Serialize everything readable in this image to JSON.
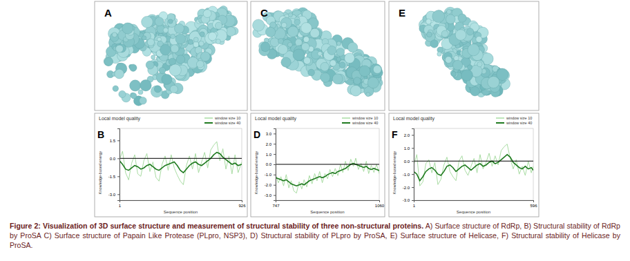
{
  "chart_data": [
    {
      "type": "line",
      "title": "Local model quality",
      "x_label": "Sequence position",
      "y_label": "Knowledge-based energy",
      "annotations": [
        "B"
      ],
      "legend": "upper right",
      "hline": 0,
      "x": [
        1,
        24,
        47,
        70,
        93,
        116,
        139,
        162,
        185,
        208,
        231,
        254,
        277,
        300,
        323,
        346,
        369,
        392,
        415,
        438,
        461,
        484,
        507,
        530,
        553,
        576,
        599,
        622,
        645,
        668,
        691,
        714,
        737,
        760,
        783,
        806,
        829,
        852,
        875,
        898,
        926
      ],
      "xlim": [
        1,
        926
      ],
      "xticks": [
        1,
        926
      ],
      "ylim": [
        -3.5,
        2.5
      ],
      "yticks": [
        {
          "value": -3,
          "label": "-3.0"
        },
        {
          "value": -1.5,
          "label": "-1.5"
        },
        {
          "value": 0,
          "label": "0.0"
        },
        {
          "value": 1.5,
          "label": "1.5"
        }
      ],
      "series": [
        {
          "name": "window size 10",
          "color": "#a9dca3",
          "values": [
            -0.1,
            0.6,
            -1.2,
            -1.8,
            -0.4,
            0.3,
            -1.3,
            -1.5,
            -0.2,
            0.4,
            -1.1,
            -0.3,
            -1.6,
            -1.9,
            -0.5,
            0.2,
            -1.0,
            0.3,
            -0.8,
            -1.4,
            -1.9,
            -2.2,
            -0.6,
            0.2,
            -0.9,
            0.4,
            -1.2,
            -0.3,
            0.5,
            -0.8,
            0.7,
            1.1,
            1.4,
            -0.2,
            0.8,
            -0.9,
            0.2,
            -1.3,
            0.3,
            -1.2,
            -0.3
          ]
        },
        {
          "name": "window size 40",
          "color": "#1f7a1f",
          "values": [
            -0.2,
            -0.5,
            -0.9,
            -1.0,
            -0.8,
            -0.6,
            -0.7,
            -0.9,
            -0.8,
            -0.6,
            -0.5,
            -0.7,
            -0.9,
            -1.0,
            -0.8,
            -0.6,
            -0.5,
            -0.4,
            -0.3,
            -0.6,
            -1.0,
            -1.2,
            -0.9,
            -0.6,
            -0.4,
            -0.3,
            -0.5,
            -0.6,
            -0.4,
            -0.2,
            0.0,
            0.3,
            0.5,
            0.4,
            0.1,
            -0.1,
            -0.3,
            -0.5,
            -0.4,
            -0.6,
            -0.5
          ]
        }
      ]
    },
    {
      "type": "line",
      "title": "Local model quality",
      "x_label": "Sequence position",
      "y_label": "Knowledge-based energy",
      "annotations": [
        "D"
      ],
      "legend": "upper right",
      "hline": 0,
      "x": [
        747,
        755,
        763,
        771,
        779,
        787,
        794,
        802,
        810,
        818,
        826,
        833,
        841,
        849,
        857,
        865,
        872,
        880,
        888,
        896,
        904,
        911,
        919,
        927,
        935,
        943,
        950,
        958,
        966,
        974,
        982,
        989,
        997,
        1005,
        1013,
        1021,
        1028,
        1036,
        1044,
        1052,
        1060
      ],
      "xlim": [
        747,
        1060
      ],
      "xticks": [
        747,
        1060
      ],
      "ylim": [
        -3.5,
        3.5
      ],
      "yticks": [
        {
          "value": -3,
          "label": "-3.0"
        },
        {
          "value": -2,
          "label": "-2.0"
        },
        {
          "value": -1,
          "label": "-1.0"
        },
        {
          "value": 0,
          "label": "0.0"
        },
        {
          "value": 1,
          "label": "1.0"
        },
        {
          "value": 2,
          "label": "2.0"
        },
        {
          "value": 3,
          "label": "3.0"
        }
      ],
      "series": [
        {
          "name": "window size 10",
          "color": "#a9dca3",
          "values": [
            -1.0,
            -1.8,
            -1.2,
            -2.1,
            -1.0,
            -2.3,
            -1.6,
            -2.6,
            -2.8,
            -1.7,
            -2.4,
            -1.5,
            -2.2,
            -1.1,
            -1.9,
            -0.9,
            -1.6,
            -0.7,
            -1.8,
            -0.9,
            -1.4,
            -0.5,
            -1.2,
            -0.4,
            -1.1,
            0.0,
            -0.8,
            0.3,
            -0.6,
            0.5,
            -0.2,
            0.6,
            -0.5,
            0.1,
            -0.7,
            0.3,
            -0.9,
            -0.1,
            -0.8,
            0.0,
            -0.9
          ]
        },
        {
          "name": "window size 40",
          "color": "#1f7a1f",
          "values": [
            -1.3,
            -1.4,
            -1.5,
            -1.6,
            -1.5,
            -1.7,
            -1.9,
            -2.0,
            -2.1,
            -2.0,
            -1.9,
            -2.0,
            -1.8,
            -1.6,
            -1.5,
            -1.4,
            -1.3,
            -1.2,
            -1.3,
            -1.2,
            -1.0,
            -0.9,
            -0.8,
            -0.9,
            -0.7,
            -0.6,
            -0.5,
            -0.4,
            -0.2,
            0.0,
            0.1,
            0.0,
            -0.1,
            -0.2,
            -0.3,
            -0.2,
            -0.4,
            -0.5,
            -0.4,
            -0.5,
            -0.6
          ]
        }
      ]
    },
    {
      "type": "line",
      "title": "Local model quality",
      "x_label": "Sequence position",
      "y_label": "Knowledge-based energy",
      "annotations": [
        "F"
      ],
      "legend": "upper right",
      "hline": 0,
      "x": [
        1,
        16,
        31,
        46,
        61,
        76,
        91,
        106,
        121,
        136,
        151,
        166,
        181,
        196,
        211,
        226,
        241,
        256,
        271,
        286,
        301,
        316,
        331,
        346,
        361,
        376,
        391,
        406,
        421,
        436,
        451,
        466,
        481,
        496,
        511,
        526,
        541,
        556,
        571,
        586,
        596
      ],
      "xlim": [
        1,
        596
      ],
      "xticks": [
        1,
        596
      ],
      "ylim": [
        -3,
        2.5
      ],
      "yticks": [
        {
          "value": -3,
          "label": "-3.0"
        },
        {
          "value": -2,
          "label": "-2.0"
        },
        {
          "value": -1,
          "label": "-1.0"
        },
        {
          "value": 0,
          "label": "0.0"
        },
        {
          "value": 1,
          "label": "1.0"
        },
        {
          "value": 2,
          "label": "2.0"
        }
      ],
      "series": [
        {
          "name": "window size 10",
          "color": "#a9dca3",
          "values": [
            -0.3,
            0.5,
            -1.9,
            -1.6,
            -0.2,
            0.1,
            -0.9,
            -0.1,
            -1.8,
            -1.4,
            -0.3,
            0.3,
            -0.8,
            -1.2,
            -1.5,
            0.0,
            0.4,
            -0.7,
            -1.1,
            -0.4,
            0.2,
            -0.9,
            0.5,
            -0.6,
            -0.1,
            0.6,
            -0.4,
            0.4,
            -0.3,
            0.8,
            1.1,
            1.3,
            0.2,
            -0.6,
            0.1,
            -1.0,
            -0.4,
            -1.1,
            0.0,
            -0.9,
            -0.4
          ]
        },
        {
          "name": "window size 40",
          "color": "#1f7a1f",
          "values": [
            -0.8,
            -1.0,
            -1.5,
            -1.2,
            -0.8,
            -0.6,
            -0.5,
            -0.7,
            -1.0,
            -1.1,
            -0.8,
            -0.4,
            -0.3,
            -0.5,
            -0.8,
            -0.6,
            -0.4,
            -0.3,
            -0.5,
            -0.7,
            -0.5,
            -0.3,
            -0.2,
            -0.4,
            -0.3,
            -0.1,
            0.0,
            -0.2,
            -0.1,
            0.1,
            0.3,
            0.5,
            0.3,
            -0.1,
            -0.3,
            -0.5,
            -0.6,
            -0.4,
            -0.6,
            -0.5,
            -0.7
          ]
        }
      ]
    }
  ],
  "images": [
    {
      "label": "A"
    },
    {
      "label": "C"
    },
    {
      "label": "E"
    }
  ],
  "caption": {
    "title": "Figure 2: Visualization of 3D surface structure and measurement of structural stability of three non-structural proteins.",
    "text": "A) Surface structure of RdRp, B) Structural stability of RdRp by ProSA C) Surface structure of Papain Like Protease (PLpro, NSP3), D) Structural stability of PLpro by ProSA, E) Surface structure of Helicase, F) Structural stability of Helicase by ProSA."
  }
}
